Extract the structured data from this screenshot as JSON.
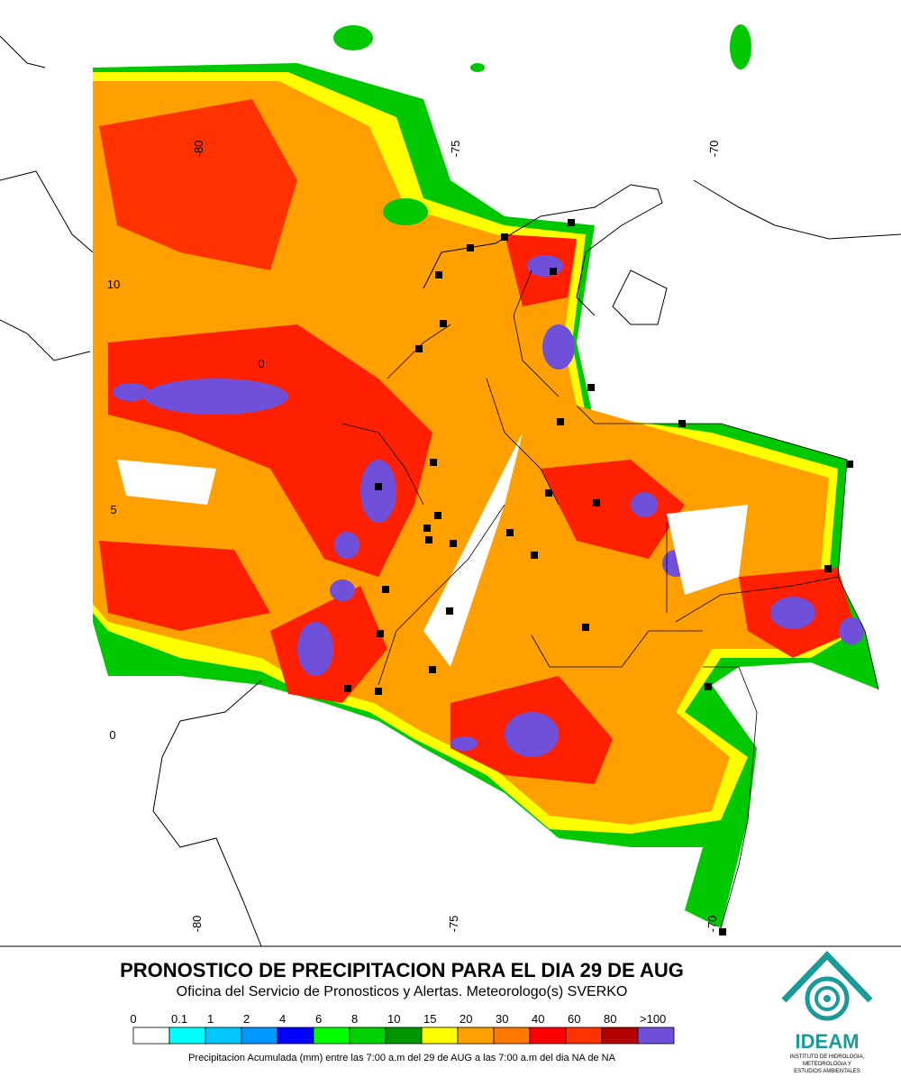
{
  "map": {
    "lon_labels_top": [
      "-80",
      "-75",
      "-70"
    ],
    "lon_labels_bottom": [
      "-80",
      "-75",
      "-70"
    ],
    "lat_labels": [
      "10",
      "5",
      "0"
    ],
    "inner_label": "0"
  },
  "header": {
    "title": "PRONOSTICO DE PRECIPITACION PARA EL DIA 29 DE AUG",
    "subtitle": "Oficina del Servicio de Pronosticos y Alertas. Meteorologo(s) SVERKO"
  },
  "legend": {
    "labels": [
      "0",
      "0.1",
      "1",
      "2",
      "4",
      "6",
      "8",
      "10",
      "15",
      "20",
      "30",
      "40",
      "60",
      "80",
      ">100"
    ],
    "colors": [
      "#ffffff",
      "#00ffff",
      "#00c8ff",
      "#0096ff",
      "#0000ff",
      "#00ff00",
      "#00d200",
      "#009600",
      "#ffff00",
      "#ffa000",
      "#ff7800",
      "#ff0000",
      "#ff3200",
      "#b40000",
      "#7050d8"
    ],
    "caption": "Precipitacion Acumulada (mm) entre las 7:00 a.m del 29 de AUG a las 7:00 a.m del dia NA de NA"
  },
  "logo": {
    "name": "IDEAM",
    "subtitle": [
      "INSTITUTO DE HIDROLOGIA,",
      "METEOROLOGIA Y",
      "ESTUDIOS AMBIENTALES"
    ]
  }
}
